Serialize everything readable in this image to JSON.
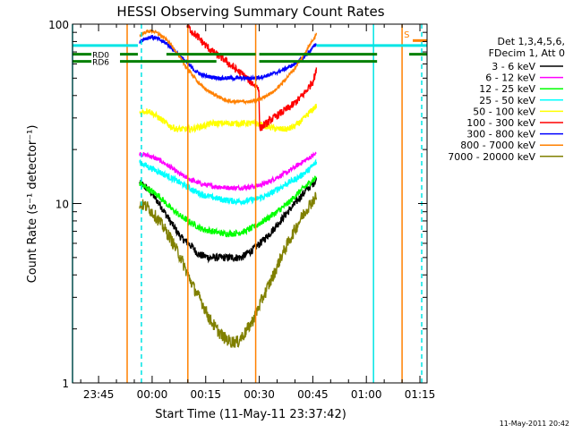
{
  "chart_data": {
    "type": "line",
    "title": "HESSI Observing Summary Count Rates",
    "xlabel": "Start Time (11-May-11 23:37:42)",
    "ylabel": "Count Rate (s⁻¹ detector⁻¹)",
    "y_scale": "log",
    "ylim": [
      1,
      100
    ],
    "xlim": [
      -22.3,
      77
    ],
    "x_unit": "minutes after 00:00 (12-May-2011)",
    "y_ticks": [
      {
        "value": 1,
        "label": "1"
      },
      {
        "value": 10,
        "label": "10"
      },
      {
        "value": 100,
        "label": "100"
      }
    ],
    "x_ticks": [
      {
        "value": -15,
        "label": "23:45"
      },
      {
        "value": 0,
        "label": "00:00"
      },
      {
        "value": 15,
        "label": "00:15"
      },
      {
        "value": 30,
        "label": "00:30"
      },
      {
        "value": 45,
        "label": "00:45"
      },
      {
        "value": 60,
        "label": "01:00"
      },
      {
        "value": 75,
        "label": "01:15"
      }
    ],
    "legend": {
      "placement": "right",
      "header": [
        "Det 1,3,4,5,6,",
        "FDecim 1, Att 0"
      ]
    },
    "series": [
      {
        "name": "3 - 6 keV",
        "color": "#000000",
        "noise": 0.05,
        "points": [
          [
            -3.5,
            13
          ],
          [
            -1,
            12
          ],
          [
            2,
            10
          ],
          [
            5,
            8
          ],
          [
            8,
            6.5
          ],
          [
            11,
            5.8
          ],
          [
            13,
            5.2
          ],
          [
            16,
            5
          ],
          [
            19,
            5
          ],
          [
            22,
            5
          ],
          [
            25,
            5
          ],
          [
            28,
            5.5
          ],
          [
            31,
            6.2
          ],
          [
            34,
            7.2
          ],
          [
            37,
            8.5
          ],
          [
            40,
            10
          ],
          [
            43,
            11.8
          ],
          [
            46,
            13.5
          ]
        ]
      },
      {
        "name": "6 - 12 keV",
        "color": "#ff00ff",
        "noise": 0.03,
        "points": [
          [
            -3.5,
            19
          ],
          [
            -1,
            18.5
          ],
          [
            2,
            17.5
          ],
          [
            5,
            16
          ],
          [
            8,
            14.5
          ],
          [
            11,
            13.5
          ],
          [
            14,
            12.8
          ],
          [
            17,
            12.5
          ],
          [
            20,
            12.3
          ],
          [
            23,
            12.2
          ],
          [
            26,
            12.3
          ],
          [
            29,
            12.5
          ],
          [
            32,
            13
          ],
          [
            35,
            14
          ],
          [
            38,
            15
          ],
          [
            41,
            16.5
          ],
          [
            44,
            18
          ],
          [
            46,
            19
          ]
        ]
      },
      {
        "name": "12 - 25 keV",
        "color": "#00ff00",
        "noise": 0.04,
        "points": [
          [
            -3.5,
            13
          ],
          [
            -1,
            12
          ],
          [
            2,
            11
          ],
          [
            5,
            9.5
          ],
          [
            8,
            8.5
          ],
          [
            11,
            7.8
          ],
          [
            14,
            7.2
          ],
          [
            17,
            7
          ],
          [
            20,
            6.8
          ],
          [
            23,
            6.8
          ],
          [
            26,
            7
          ],
          [
            29,
            7.5
          ],
          [
            32,
            8.2
          ],
          [
            35,
            9
          ],
          [
            38,
            10
          ],
          [
            41,
            11.5
          ],
          [
            44,
            13
          ],
          [
            46,
            14
          ]
        ]
      },
      {
        "name": "25 - 50 keV",
        "color": "#00ffff",
        "noise": 0.04,
        "points": [
          [
            -3.5,
            17
          ],
          [
            -1,
            16
          ],
          [
            2,
            15
          ],
          [
            5,
            14
          ],
          [
            8,
            13
          ],
          [
            11,
            12
          ],
          [
            14,
            11.2
          ],
          [
            17,
            10.8
          ],
          [
            20,
            10.5
          ],
          [
            23,
            10.3
          ],
          [
            26,
            10.3
          ],
          [
            29,
            10.6
          ],
          [
            32,
            11
          ],
          [
            35,
            12
          ],
          [
            38,
            13
          ],
          [
            41,
            14
          ],
          [
            44,
            15.5
          ],
          [
            46,
            17
          ]
        ]
      },
      {
        "name": "50 - 100 keV",
        "color": "#ffff00",
        "noise": 0.04,
        "points": [
          [
            -3.5,
            32
          ],
          [
            -1,
            33
          ],
          [
            1,
            31
          ],
          [
            3,
            29
          ],
          [
            5,
            27
          ],
          [
            7,
            26
          ],
          [
            9,
            26
          ],
          [
            11,
            26
          ],
          [
            14,
            27
          ],
          [
            17,
            28
          ],
          [
            20,
            28
          ],
          [
            23,
            28
          ],
          [
            26,
            28
          ],
          [
            29,
            28
          ],
          [
            32,
            27
          ],
          [
            35,
            26
          ],
          [
            38,
            26
          ],
          [
            40,
            27
          ],
          [
            42,
            29
          ],
          [
            44,
            32
          ],
          [
            46,
            35
          ]
        ]
      },
      {
        "name": "100 - 300 keV",
        "color": "#ff0000",
        "noise": 0.05,
        "points": [
          [
            9.8,
            98
          ],
          [
            11,
            92
          ],
          [
            13,
            84
          ],
          [
            15,
            76
          ],
          [
            17,
            70
          ],
          [
            20,
            64
          ],
          [
            22,
            59
          ],
          [
            24,
            55
          ],
          [
            26,
            51
          ],
          [
            28,
            47
          ],
          [
            29.9,
            44
          ],
          [
            30.1,
            26
          ],
          [
            31,
            27
          ],
          [
            33,
            29
          ],
          [
            36,
            32
          ],
          [
            39,
            35
          ],
          [
            41,
            38
          ],
          [
            43,
            42
          ],
          [
            45,
            48
          ],
          [
            46,
            55
          ]
        ]
      },
      {
        "name": "300 - 800 keV",
        "color": "#0000ff",
        "noise": 0.025,
        "points": [
          [
            -3.5,
            80
          ],
          [
            -2,
            83
          ],
          [
            0,
            85
          ],
          [
            2,
            82
          ],
          [
            4,
            78
          ],
          [
            6,
            72
          ],
          [
            8,
            66
          ],
          [
            10,
            60
          ],
          [
            12,
            55
          ],
          [
            14,
            52
          ],
          [
            16,
            51
          ],
          [
            19,
            50
          ],
          [
            22,
            50
          ],
          [
            25,
            50
          ],
          [
            28,
            50
          ],
          [
            31,
            51
          ],
          [
            34,
            53
          ],
          [
            37,
            56
          ],
          [
            40,
            60
          ],
          [
            42,
            64
          ],
          [
            44,
            70
          ],
          [
            46,
            78
          ]
        ]
      },
      {
        "name": "800 - 7000 keV",
        "color": "#ff8000",
        "noise": 0.02,
        "points": [
          [
            -3.5,
            86
          ],
          [
            -2,
            90
          ],
          [
            0,
            92
          ],
          [
            2,
            88
          ],
          [
            4,
            82
          ],
          [
            6,
            74
          ],
          [
            8,
            64
          ],
          [
            10,
            56
          ],
          [
            12,
            50
          ],
          [
            14,
            45
          ],
          [
            16,
            42
          ],
          [
            18,
            40
          ],
          [
            20,
            38
          ],
          [
            22,
            37
          ],
          [
            24,
            37
          ],
          [
            26,
            37
          ],
          [
            28,
            37
          ],
          [
            30,
            38
          ],
          [
            32,
            40
          ],
          [
            34,
            42
          ],
          [
            36,
            46
          ],
          [
            38,
            51
          ],
          [
            40,
            57
          ],
          [
            42,
            65
          ],
          [
            44,
            76
          ],
          [
            46,
            88
          ]
        ]
      },
      {
        "name": "7000 - 20000 keV",
        "color": "#808000",
        "noise": 0.08,
        "points": [
          [
            -3.5,
            10
          ],
          [
            -1,
            9.5
          ],
          [
            2,
            8
          ],
          [
            5,
            6.5
          ],
          [
            8,
            5
          ],
          [
            10,
            4
          ],
          [
            12,
            3.3
          ],
          [
            14,
            2.8
          ],
          [
            16,
            2.3
          ],
          [
            18,
            2
          ],
          [
            20,
            1.8
          ],
          [
            22,
            1.7
          ],
          [
            24,
            1.7
          ],
          [
            26,
            1.9
          ],
          [
            28,
            2.2
          ],
          [
            30,
            2.7
          ],
          [
            32,
            3.3
          ],
          [
            34,
            4
          ],
          [
            36,
            5
          ],
          [
            38,
            6
          ],
          [
            40,
            7.2
          ],
          [
            42,
            8.5
          ],
          [
            44,
            9.8
          ],
          [
            46,
            11
          ]
        ]
      }
    ],
    "annotations": {
      "rd_bars": [
        {
          "label": "RD0",
          "color": "#008000",
          "y": 68,
          "segments": [
            [
              -22.3,
              -17
            ],
            [
              -9,
              -4
            ],
            [
              4,
              29
            ],
            [
              30,
              63
            ],
            [
              72,
              77
            ]
          ]
        },
        {
          "label": "RD6",
          "color": "#008000",
          "y": 62,
          "segments": [
            [
              -22.3,
              -17
            ],
            [
              -9,
              18
            ],
            [
              30,
              63
            ]
          ]
        }
      ],
      "saa_bars": [
        {
          "color": "#00e5e5",
          "y": 76,
          "segments": [
            [
              -22.3,
              -4
            ],
            [
              46,
              77
            ]
          ]
        },
        {
          "color": "#ff8000",
          "y": 81,
          "segments": [
            [
              73,
              77
            ]
          ]
        }
      ],
      "flag_label": {
        "text": "S",
        "color": "#ff8000",
        "x": 70.5,
        "y": 84
      },
      "vlines": [
        {
          "x": -22.3,
          "color": "#00e5e5",
          "style": "solid"
        },
        {
          "x": -7,
          "color": "#ff8000",
          "style": "solid"
        },
        {
          "x": -3,
          "color": "#00e5e5",
          "style": "dashed"
        },
        {
          "x": 10,
          "color": "#ff8000",
          "style": "solid"
        },
        {
          "x": 29,
          "color": "#ff8000",
          "style": "solid"
        },
        {
          "x": 62,
          "color": "#00e5e5",
          "style": "solid"
        },
        {
          "x": 70,
          "color": "#ff8000",
          "style": "solid"
        },
        {
          "x": 75.5,
          "color": "#00e5e5",
          "style": "dashed"
        }
      ]
    }
  },
  "footer": {
    "date_stamp": "11-May-2011 20:42"
  }
}
